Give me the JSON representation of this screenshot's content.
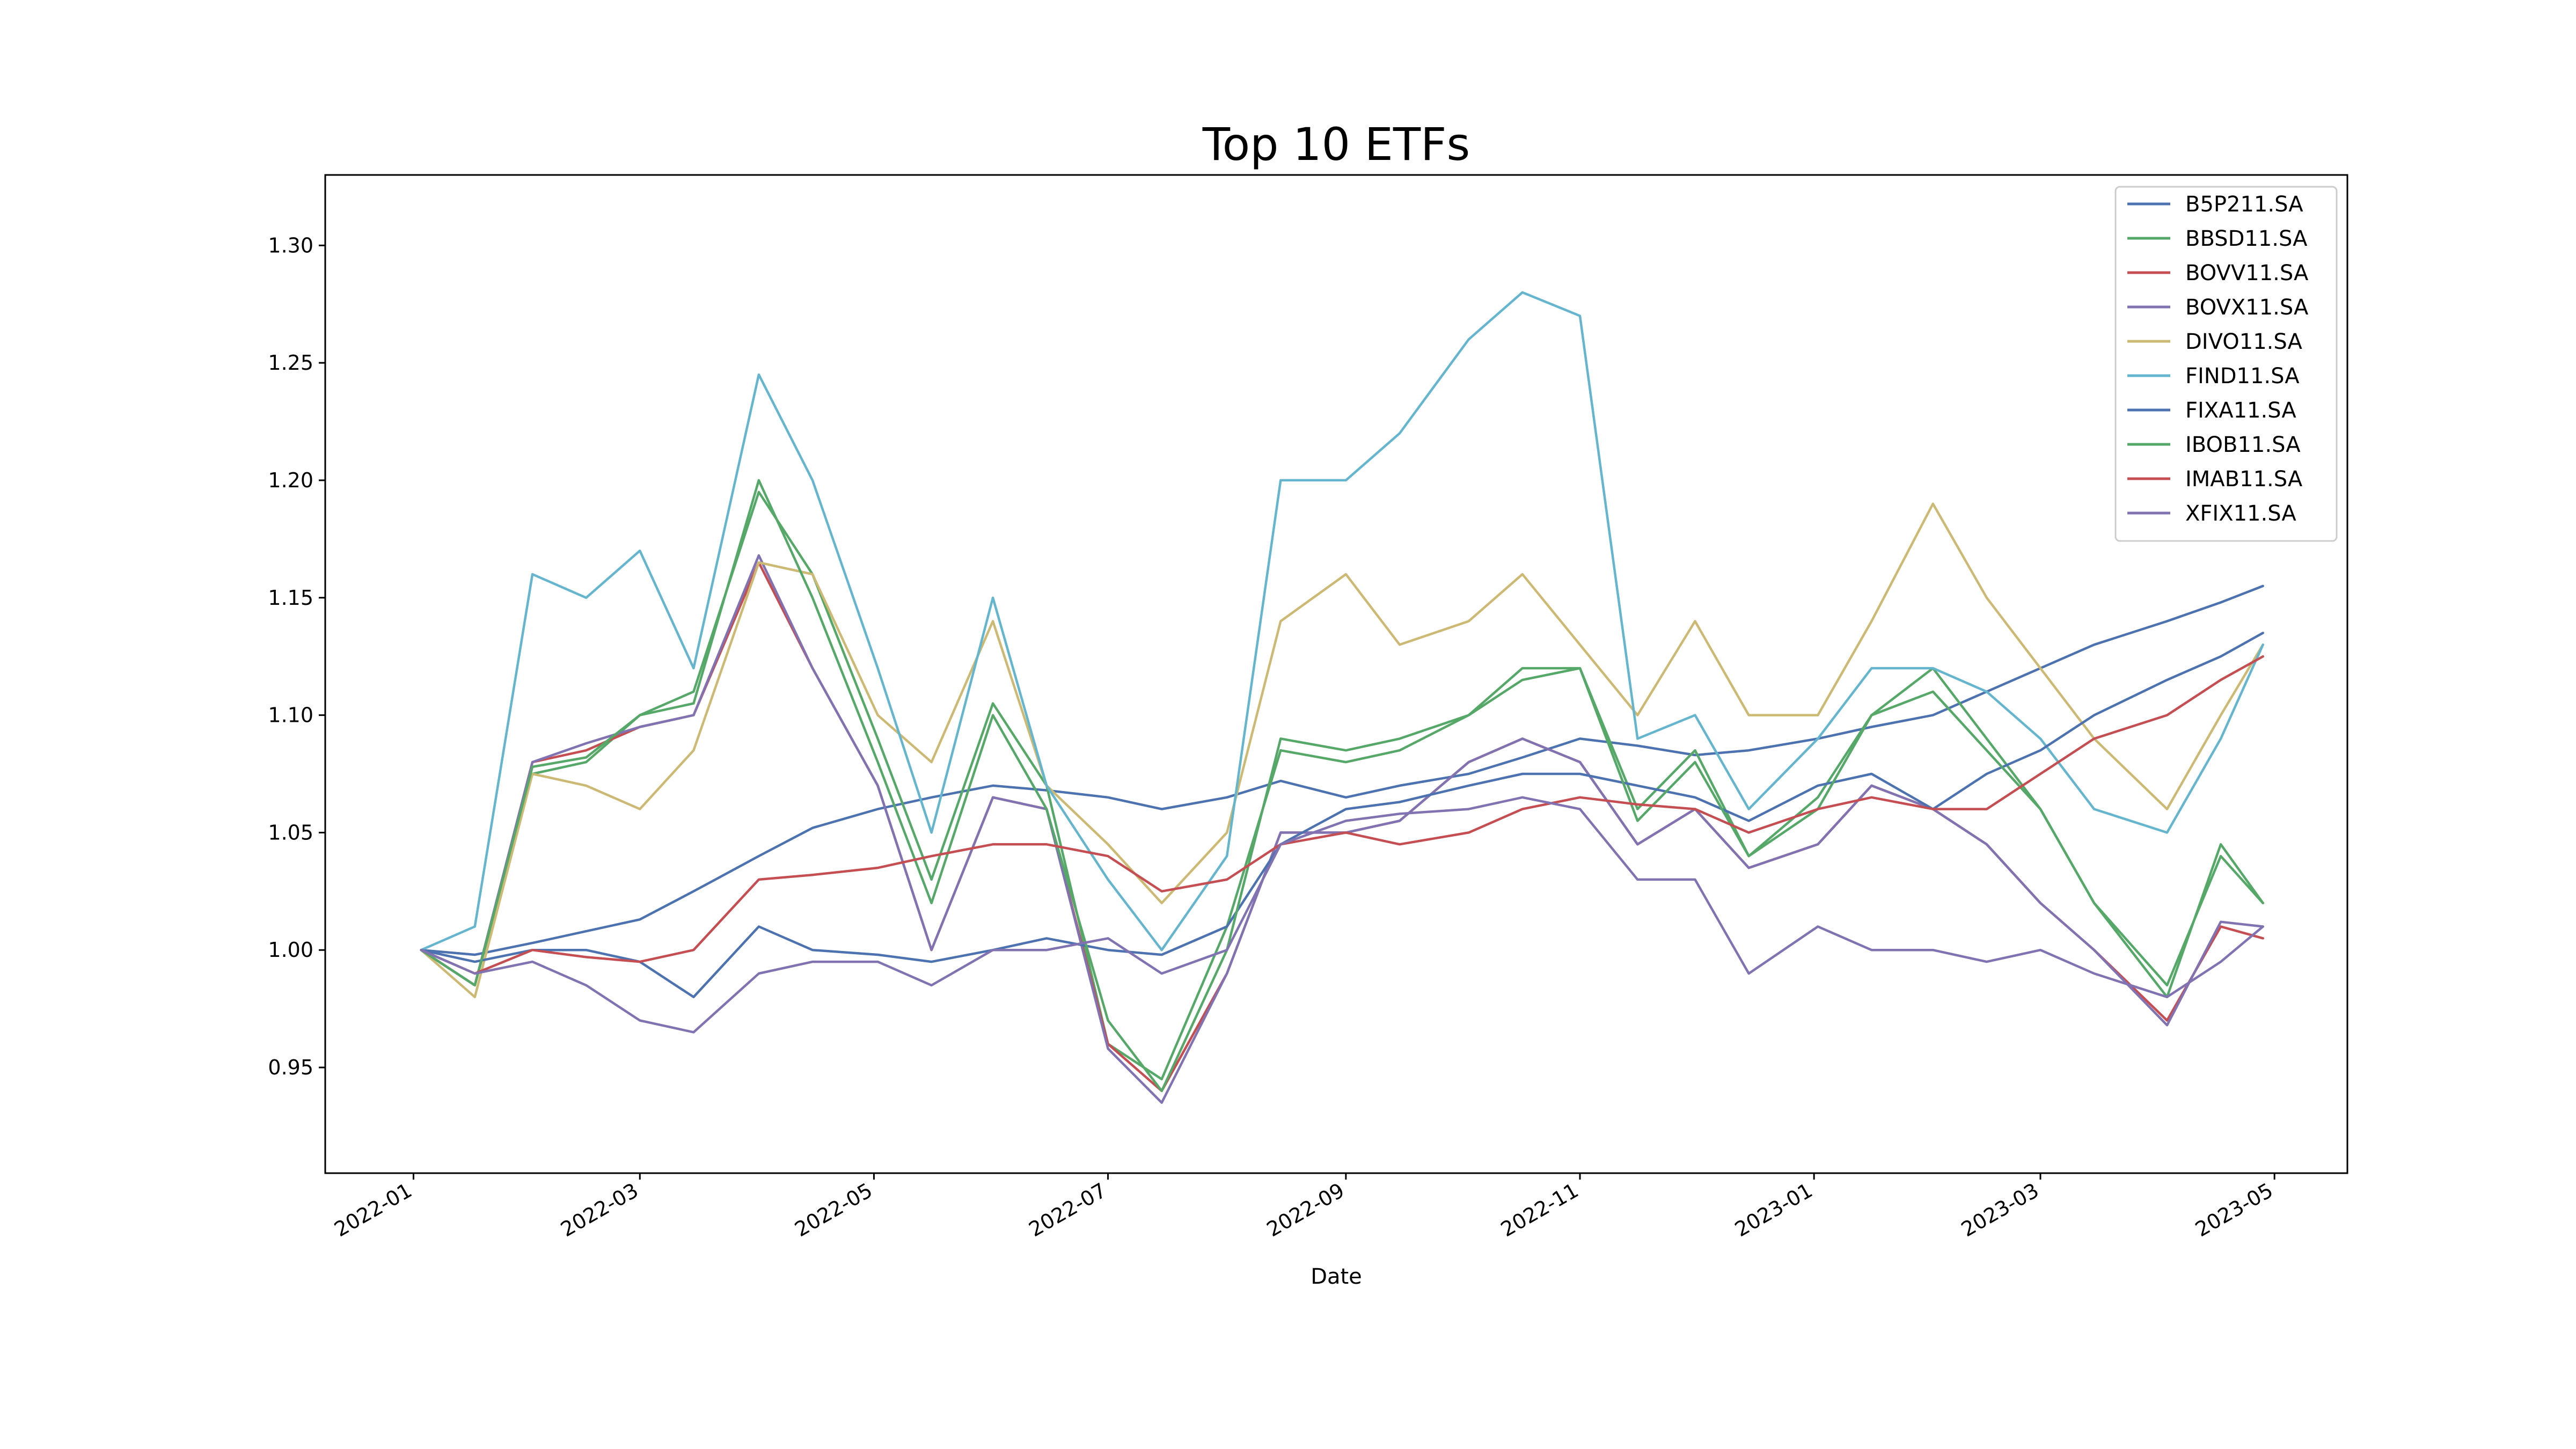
{
  "chart_data": {
    "type": "line",
    "title": "Top 10 ETFs",
    "xlabel": "Date",
    "ylabel": "",
    "x_dates": [
      "2022-01-03",
      "2022-01-17",
      "2022-02-01",
      "2022-02-15",
      "2022-03-01",
      "2022-03-15",
      "2022-04-01",
      "2022-04-15",
      "2022-05-02",
      "2022-05-16",
      "2022-06-01",
      "2022-06-15",
      "2022-07-01",
      "2022-07-15",
      "2022-08-01",
      "2022-08-15",
      "2022-09-01",
      "2022-09-15",
      "2022-10-03",
      "2022-10-17",
      "2022-11-01",
      "2022-11-16",
      "2022-12-01",
      "2022-12-15",
      "2023-01-02",
      "2023-01-16",
      "2023-02-01",
      "2023-02-15",
      "2023-03-01",
      "2023-03-15",
      "2023-04-03",
      "2023-04-17",
      "2023-04-28"
    ],
    "x_ticks": [
      "2022-01",
      "2022-03",
      "2022-05",
      "2022-07",
      "2022-09",
      "2022-11",
      "2023-01",
      "2023-03",
      "2023-05"
    ],
    "y_ticks": [
      "0.95",
      "1.00",
      "1.05",
      "1.10",
      "1.15",
      "1.20",
      "1.25",
      "1.30"
    ],
    "ylim": [
      0.905,
      1.33
    ],
    "xlim": [
      "2021-12-09",
      "2023-05-20"
    ],
    "legend_position": "top-right",
    "series": [
      {
        "name": "B5P211.SA",
        "color": "#4c72b0",
        "values": [
          1.0,
          0.998,
          1.003,
          1.008,
          1.013,
          1.025,
          1.04,
          1.052,
          1.06,
          1.065,
          1.07,
          1.068,
          1.065,
          1.06,
          1.065,
          1.072,
          1.065,
          1.07,
          1.075,
          1.082,
          1.09,
          1.087,
          1.083,
          1.085,
          1.09,
          1.095,
          1.1,
          1.11,
          1.12,
          1.13,
          1.14,
          1.148,
          1.155
        ]
      },
      {
        "name": "BBSD11.SA",
        "color": "#55a868",
        "values": [
          1.0,
          0.985,
          1.075,
          1.08,
          1.1,
          1.11,
          1.195,
          1.16,
          1.09,
          1.03,
          1.105,
          1.07,
          0.96,
          0.945,
          1.01,
          1.085,
          1.08,
          1.085,
          1.1,
          1.115,
          1.12,
          1.06,
          1.085,
          1.04,
          1.065,
          1.1,
          1.12,
          1.09,
          1.06,
          1.02,
          0.985,
          1.04,
          1.02
        ]
      },
      {
        "name": "BOVV11.SA",
        "color": "#c44e52",
        "values": [
          1.0,
          0.985,
          1.08,
          1.085,
          1.095,
          1.1,
          1.165,
          1.12,
          1.07,
          1.0,
          1.065,
          1.06,
          0.96,
          0.94,
          0.99,
          1.05,
          1.05,
          1.055,
          1.08,
          1.09,
          1.08,
          1.045,
          1.06,
          1.035,
          1.045,
          1.07,
          1.06,
          1.045,
          1.02,
          1.0,
          0.97,
          1.01,
          1.005
        ]
      },
      {
        "name": "BOVX11.SA",
        "color": "#8172b2",
        "values": [
          1.0,
          0.985,
          1.08,
          1.088,
          1.095,
          1.1,
          1.168,
          1.12,
          1.07,
          1.0,
          1.065,
          1.06,
          0.958,
          0.935,
          0.99,
          1.05,
          1.05,
          1.055,
          1.08,
          1.09,
          1.08,
          1.045,
          1.06,
          1.035,
          1.045,
          1.07,
          1.06,
          1.045,
          1.02,
          1.0,
          0.968,
          1.012,
          1.01
        ]
      },
      {
        "name": "DIVO11.SA",
        "color": "#ccb974",
        "values": [
          1.0,
          0.98,
          1.075,
          1.07,
          1.06,
          1.085,
          1.165,
          1.16,
          1.1,
          1.08,
          1.14,
          1.07,
          1.045,
          1.02,
          1.05,
          1.14,
          1.16,
          1.13,
          1.14,
          1.16,
          1.13,
          1.1,
          1.14,
          1.1,
          1.1,
          1.14,
          1.19,
          1.15,
          1.12,
          1.09,
          1.06,
          1.1,
          1.13
        ]
      },
      {
        "name": "FIND11.SA",
        "color": "#64b5cd",
        "values": [
          1.0,
          1.01,
          1.16,
          1.15,
          1.17,
          1.12,
          1.245,
          1.2,
          1.12,
          1.05,
          1.15,
          1.07,
          1.03,
          1.0,
          1.04,
          1.2,
          1.2,
          1.22,
          1.26,
          1.28,
          1.27,
          1.09,
          1.1,
          1.06,
          1.09,
          1.12,
          1.12,
          1.11,
          1.09,
          1.06,
          1.05,
          1.09,
          1.13
        ]
      },
      {
        "name": "FIXA11.SA",
        "color": "#4c72b0",
        "values": [
          1.0,
          0.995,
          1.0,
          1.0,
          0.995,
          0.98,
          1.01,
          1.0,
          0.998,
          0.995,
          1.0,
          1.005,
          1.0,
          0.998,
          1.01,
          1.045,
          1.06,
          1.063,
          1.07,
          1.075,
          1.075,
          1.07,
          1.065,
          1.055,
          1.07,
          1.075,
          1.06,
          1.075,
          1.085,
          1.1,
          1.115,
          1.125,
          1.135
        ]
      },
      {
        "name": "IBOB11.SA",
        "color": "#55a868",
        "values": [
          1.0,
          0.985,
          1.078,
          1.082,
          1.1,
          1.105,
          1.2,
          1.15,
          1.08,
          1.02,
          1.1,
          1.06,
          0.97,
          0.94,
          1.0,
          1.09,
          1.085,
          1.09,
          1.1,
          1.12,
          1.12,
          1.055,
          1.08,
          1.04,
          1.06,
          1.1,
          1.11,
          1.085,
          1.06,
          1.02,
          0.98,
          1.045,
          1.02
        ]
      },
      {
        "name": "IMAB11.SA",
        "color": "#c44e52",
        "values": [
          1.0,
          0.99,
          1.0,
          0.997,
          0.995,
          1.0,
          1.03,
          1.032,
          1.035,
          1.04,
          1.045,
          1.045,
          1.04,
          1.025,
          1.03,
          1.045,
          1.05,
          1.045,
          1.05,
          1.06,
          1.065,
          1.062,
          1.06,
          1.05,
          1.06,
          1.065,
          1.06,
          1.06,
          1.075,
          1.09,
          1.1,
          1.115,
          1.125
        ]
      },
      {
        "name": "XFIX11.SA",
        "color": "#8172b2",
        "values": [
          1.0,
          0.99,
          0.995,
          0.985,
          0.97,
          0.965,
          0.99,
          0.995,
          0.995,
          0.985,
          1.0,
          1.0,
          1.005,
          0.99,
          1.0,
          1.045,
          1.055,
          1.058,
          1.06,
          1.065,
          1.06,
          1.03,
          1.03,
          0.99,
          1.01,
          1.0,
          1.0,
          0.995,
          1.0,
          0.99,
          0.98,
          0.995,
          1.01
        ]
      }
    ]
  }
}
